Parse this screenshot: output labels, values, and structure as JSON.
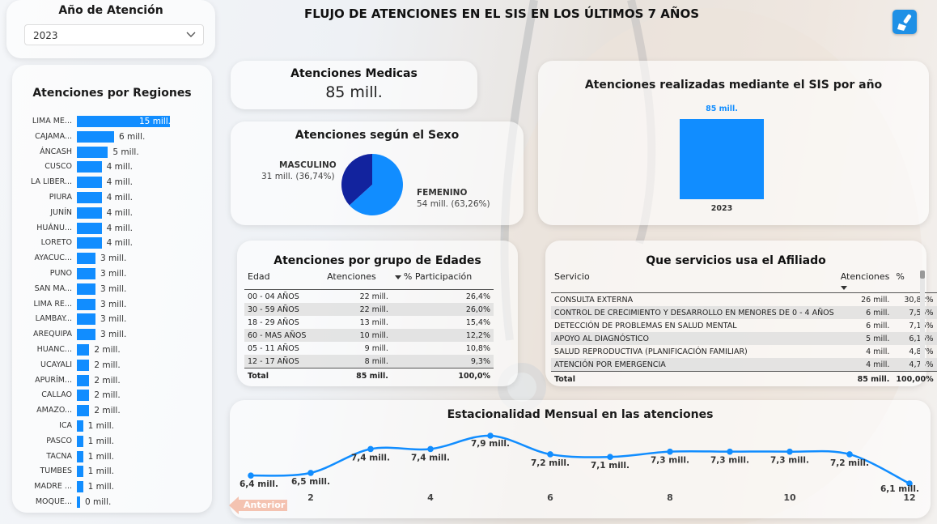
{
  "page_title": "FLUJO DE ATENCIONES  EN EL SIS EN LOS ÚLTIMOS 7 AÑOS",
  "colors": {
    "accent": "#118dff",
    "dark_blue": "#12239e",
    "button_orange": "#f3b9a3"
  },
  "year_filter": {
    "title": "Año de Atención",
    "selected": "2023",
    "icon": "chevron-down-icon"
  },
  "toolbar": {
    "clear_filters_icon": "brush-icon"
  },
  "kpi": {
    "title": "Atenciones Medicas",
    "value": "85 mill."
  },
  "regions": {
    "title": "Atenciones por Regiones",
    "items": [
      {
        "label": "LIMA ME...",
        "value": 15,
        "value_label": "15 mill."
      },
      {
        "label": "CAJAMA...",
        "value": 6,
        "value_label": "6 mill."
      },
      {
        "label": "ÁNCASH",
        "value": 5,
        "value_label": "5 mill."
      },
      {
        "label": "CUSCO",
        "value": 4,
        "value_label": "4 mill."
      },
      {
        "label": "LA LIBER...",
        "value": 4,
        "value_label": "4 mill."
      },
      {
        "label": "PIURA",
        "value": 4,
        "value_label": "4 mill."
      },
      {
        "label": "JUNÍN",
        "value": 4,
        "value_label": "4 mill."
      },
      {
        "label": "HUÁNU...",
        "value": 4,
        "value_label": "4 mill."
      },
      {
        "label": "LORETO",
        "value": 4,
        "value_label": "4 mill."
      },
      {
        "label": "AYACUC...",
        "value": 3,
        "value_label": "3 mill."
      },
      {
        "label": "PUNO",
        "value": 3,
        "value_label": "3 mill."
      },
      {
        "label": "SAN MA...",
        "value": 3,
        "value_label": "3 mill."
      },
      {
        "label": "LIMA RE...",
        "value": 3,
        "value_label": "3 mill."
      },
      {
        "label": "LAMBAY...",
        "value": 3,
        "value_label": "3 mill."
      },
      {
        "label": "AREQUIPA",
        "value": 3,
        "value_label": "3 mill."
      },
      {
        "label": "HUANC...",
        "value": 2,
        "value_label": "2 mill."
      },
      {
        "label": "UCAYALI",
        "value": 2,
        "value_label": "2 mill."
      },
      {
        "label": "APURÍM...",
        "value": 2,
        "value_label": "2 mill."
      },
      {
        "label": "CALLAO",
        "value": 2,
        "value_label": "2 mill."
      },
      {
        "label": "AMAZO...",
        "value": 2,
        "value_label": "2 mill."
      },
      {
        "label": "ICA",
        "value": 1,
        "value_label": "1 mill."
      },
      {
        "label": "PASCO",
        "value": 1,
        "value_label": "1 mill."
      },
      {
        "label": "TACNA",
        "value": 1,
        "value_label": "1 mill."
      },
      {
        "label": "TUMBES",
        "value": 1,
        "value_label": "1 mill."
      },
      {
        "label": "MADRE ...",
        "value": 1,
        "value_label": "1 mill."
      },
      {
        "label": "MOQUE...",
        "value": 0.5,
        "value_label": "0 mill."
      }
    ]
  },
  "sexo": {
    "title": "Atenciones según el Sexo",
    "slices": [
      {
        "name": "MASCULINO",
        "label": "31 mill. (36,74%)",
        "percent": 36.74,
        "color": "#12239e"
      },
      {
        "name": "FEMENINO",
        "label": "54 mill. (63,26%)",
        "percent": 63.26,
        "color": "#118dff"
      }
    ]
  },
  "year_chart": {
    "title": "Atenciones realizadas mediante el SIS por año",
    "category": "2023",
    "value": 85,
    "value_label": "85 mill."
  },
  "edad_table": {
    "title": "Atenciones por grupo de Edades",
    "headers": [
      "Edad",
      "Atenciones",
      "% Participación"
    ],
    "rows": [
      [
        "00 - 04 AÑOS",
        "22 mill.",
        "26,4%"
      ],
      [
        "30 - 59 AÑOS",
        "22 mill.",
        "26,0%"
      ],
      [
        "18 - 29 AÑOS",
        "13 mill.",
        "15,4%"
      ],
      [
        "60 - MAS AÑOS",
        "10 mill.",
        "12,2%"
      ],
      [
        "05 - 11 AÑOS",
        "9 mill.",
        "10,8%"
      ],
      [
        "12 - 17 AÑOS",
        "8 mill.",
        "9,3%"
      ]
    ],
    "total": [
      "Total",
      "85 mill.",
      "100,0%"
    ]
  },
  "servicios_table": {
    "title": "Que servicios usa el Afiliado",
    "headers": [
      "Servicio",
      "Atenciones",
      "%"
    ],
    "rows": [
      [
        "CONSULTA EXTERNA",
        "26 mill.",
        "30,82%"
      ],
      [
        "CONTROL DE CRECIMIENTO Y DESARROLLO EN MENORES DE 0 - 4 AÑOS",
        "6 mill.",
        "7,55%"
      ],
      [
        "DETECCIÓN DE PROBLEMAS EN SALUD MENTAL",
        "6 mill.",
        "7,16%"
      ],
      [
        "APOYO AL DIAGNÓSTICO",
        "5 mill.",
        "6,16%"
      ],
      [
        "SALUD REPRODUCTIVA (PLANIFICACIÓN FAMILIAR)",
        "4 mill.",
        "4,87%"
      ],
      [
        "ATENCIÓN POR EMERGENCIA",
        "4 mill.",
        "4,74%"
      ]
    ],
    "total": [
      "Total",
      "85 mill.",
      "100,00%"
    ]
  },
  "chart_data": {
    "type": "line",
    "title": "Estacionalidad Mensual en las atenciones",
    "x": [
      1,
      2,
      3,
      4,
      5,
      6,
      7,
      8,
      9,
      10,
      11,
      12
    ],
    "y": [
      6.4,
      6.5,
      7.4,
      7.4,
      7.9,
      7.2,
      7.1,
      7.3,
      7.3,
      7.3,
      7.2,
      6.1
    ],
    "labels": [
      "6,4 mill.",
      "6,5 mill.",
      "7,4 mill.",
      "7,4 mill.",
      "7,9 mill.",
      "7,2 mill.",
      "7,1 mill.",
      "7,3 mill.",
      "7,3 mill.",
      "7,3 mill.",
      "7,2 mill.",
      "6,1 mill."
    ],
    "xticks": [
      "2",
      "4",
      "6",
      "8",
      "10",
      "12"
    ],
    "ylim": [
      6,
      8
    ],
    "grid": false
  },
  "nav": {
    "back_label": "Anterior"
  }
}
